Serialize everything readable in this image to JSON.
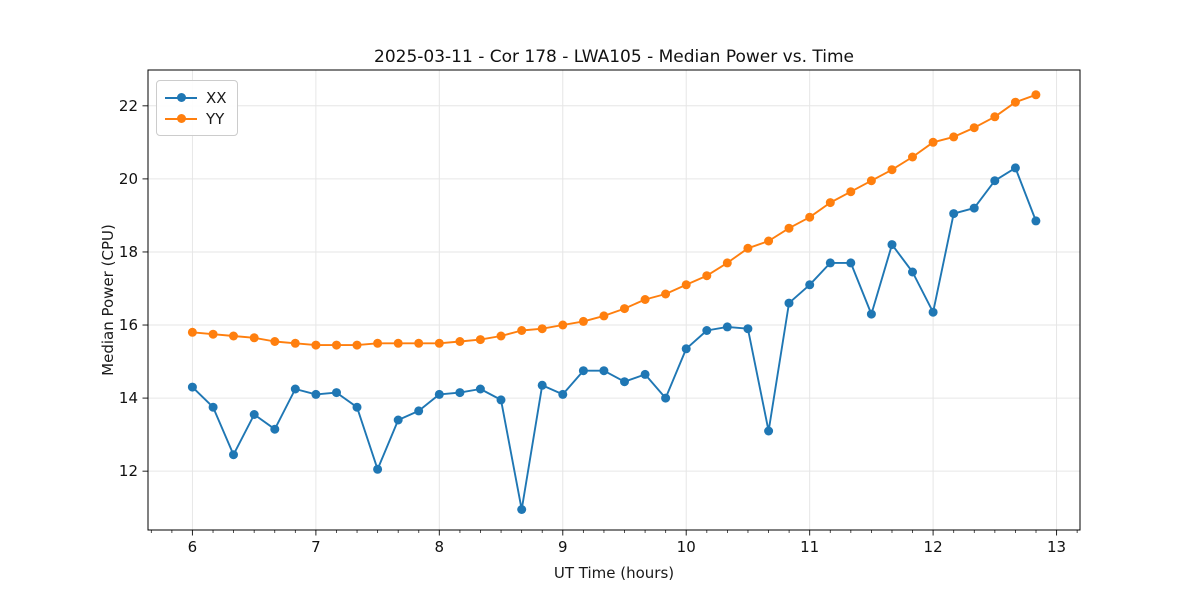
{
  "chart_data": {
    "type": "line",
    "title": "2025-03-11 - Cor 178 - LWA105 - Median Power vs. Time",
    "xlabel": "UT Time (hours)",
    "ylabel": "Median Power (CPU)",
    "xlim": [
      5.64,
      13.19
    ],
    "ylim": [
      10.39,
      22.98
    ],
    "xticks": [
      6,
      7,
      8,
      9,
      10,
      11,
      12,
      13
    ],
    "yticks": [
      12,
      14,
      16,
      18,
      20,
      22
    ],
    "minor_xtick_step": 0.16667,
    "grid": true,
    "grid_color": "#e6e6e6",
    "legend_position": "upper-left",
    "x": [
      6.0,
      6.167,
      6.333,
      6.5,
      6.667,
      6.833,
      7.0,
      7.167,
      7.333,
      7.5,
      7.667,
      7.833,
      8.0,
      8.167,
      8.333,
      8.5,
      8.667,
      8.833,
      9.0,
      9.167,
      9.333,
      9.5,
      9.667,
      9.833,
      10.0,
      10.167,
      10.333,
      10.5,
      10.667,
      10.833,
      11.0,
      11.167,
      11.333,
      11.5,
      11.667,
      11.833,
      12.0,
      12.167,
      12.333,
      12.5,
      12.667,
      12.833
    ],
    "series": [
      {
        "name": "XX",
        "color": "#1f77b4",
        "values": [
          14.3,
          13.75,
          12.45,
          13.55,
          13.15,
          14.25,
          14.1,
          14.15,
          13.75,
          12.05,
          13.4,
          13.65,
          14.1,
          14.15,
          14.25,
          13.95,
          10.95,
          14.35,
          14.1,
          14.75,
          14.75,
          14.45,
          14.65,
          14.0,
          15.35,
          15.85,
          15.95,
          15.9,
          13.1,
          16.6,
          17.1,
          17.7,
          17.7,
          16.3,
          18.2,
          17.45,
          16.35,
          19.05,
          19.2,
          19.95,
          20.3,
          18.85
        ]
      },
      {
        "name": "YY",
        "color": "#ff7f0e",
        "values": [
          15.8,
          15.75,
          15.7,
          15.65,
          15.55,
          15.5,
          15.45,
          15.45,
          15.45,
          15.5,
          15.5,
          15.5,
          15.5,
          15.55,
          15.6,
          15.7,
          15.85,
          15.9,
          16.0,
          16.1,
          16.25,
          16.45,
          16.7,
          16.85,
          17.1,
          17.35,
          17.7,
          18.1,
          18.3,
          18.65,
          18.95,
          19.35,
          19.65,
          19.95,
          20.25,
          20.6,
          21.0,
          21.15,
          21.4,
          21.7,
          22.1,
          22.3
        ]
      }
    ]
  }
}
